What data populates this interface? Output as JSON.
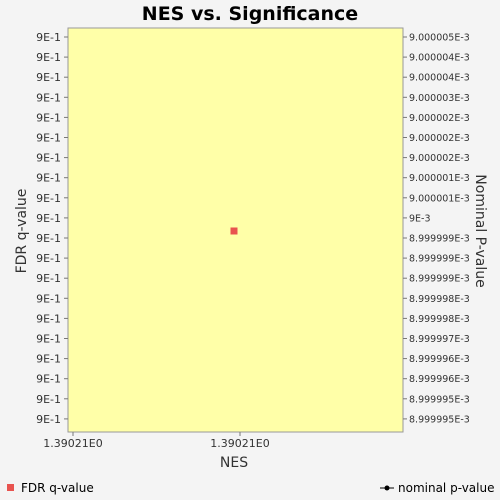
{
  "chart_data": {
    "type": "scatter",
    "title": "NES vs. Significance",
    "xlabel": "NES",
    "ylabel_left": "FDR q-value",
    "ylabel_right": "Nominal P-value",
    "x_tick_labels": [
      "1.39021E0",
      "1.39021E0"
    ],
    "y_left_tick_labels": [
      "9E-1",
      "9E-1",
      "9E-1",
      "9E-1",
      "9E-1",
      "9E-1",
      "9E-1",
      "9E-1",
      "9E-1",
      "9E-1",
      "9E-1",
      "9E-1",
      "9E-1",
      "9E-1",
      "9E-1",
      "9E-1",
      "9E-1",
      "9E-1",
      "9E-1",
      "9E-1"
    ],
    "y_right_tick_labels": [
      "9.000005E-3",
      "9.000004E-3",
      "9.000004E-3",
      "9.000003E-3",
      "9.000002E-3",
      "9.000002E-3",
      "9.000002E-3",
      "9.000001E-3",
      "9.000001E-3",
      "9E-3",
      "8.999999E-3",
      "8.999999E-3",
      "8.999999E-3",
      "8.999998E-3",
      "8.999998E-3",
      "8.999997E-3",
      "8.999996E-3",
      "8.999996E-3",
      "8.999995E-3",
      "8.999995E-3"
    ],
    "series": [
      {
        "name": "FDR q-value",
        "color": "#e8534f",
        "marker": "square",
        "x": [
          1.39021
        ],
        "y": [
          0.9
        ]
      }
    ],
    "legend": [
      {
        "label": "FDR q-value",
        "color": "#e8534f",
        "marker": "square"
      },
      {
        "label": "nominal p-value",
        "color": "#000000",
        "marker": "line-dot"
      }
    ],
    "legend_placement": "bottom",
    "plot_background": "#ffffa8",
    "grid": false
  }
}
